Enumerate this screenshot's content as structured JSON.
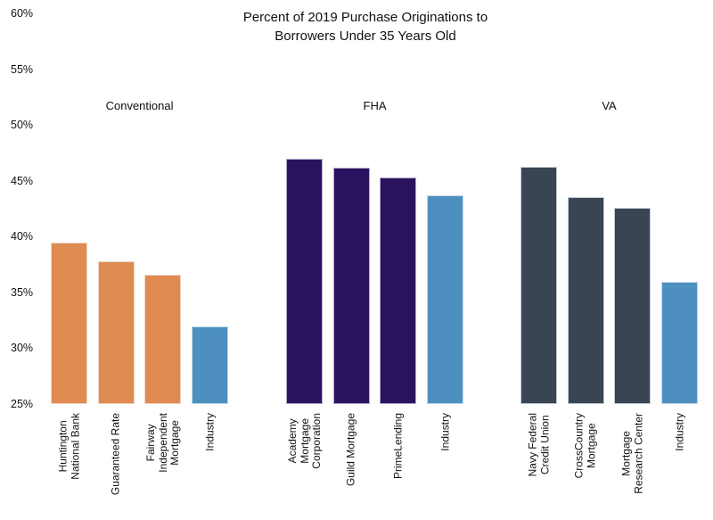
{
  "chart_data": {
    "type": "bar",
    "title": "Percent of 2019 Purchase Originations to Borrowers Under 35 Years Old",
    "title_lines": [
      "Percent of 2019 Purchase Originations to",
      "Borrowers Under 35 Years Old"
    ],
    "xlabel": "",
    "ylabel": "",
    "grid": false,
    "legend": "none",
    "y_axis": {
      "unit": "%",
      "min": 25,
      "max": 60,
      "tick_values": [
        60,
        55,
        50,
        45,
        40,
        35,
        30,
        25
      ],
      "tick_labels": [
        "60%",
        "55%",
        "50%",
        "45%",
        "40%",
        "35%",
        "30%",
        "25%"
      ]
    },
    "industry_color": "#4d90c0",
    "industry_edge_color": "#c3d7e7",
    "groups": [
      {
        "label": "Conventional",
        "bar_color": "#de8a51",
        "edge_color": "#eed7c2",
        "bars": [
          {
            "label": "Huntington National Bank",
            "label_lines": [
              "Huntington",
              "National Bank"
            ],
            "value": 39.5
          },
          {
            "label": "Guaranteed Rate",
            "label_lines": [
              "Guaranteed Rate"
            ],
            "value": 37.8
          },
          {
            "label": "Fairway Independent Mortgage",
            "label_lines": [
              "Fairway",
              "Independent",
              "Mortgage"
            ],
            "value": 36.6
          },
          {
            "label": "Industry",
            "label_lines": [
              "Industry"
            ],
            "value": 32.0,
            "industry": true
          }
        ]
      },
      {
        "label": "FHA",
        "bar_color": "#2a135e",
        "edge_color": "#b5aacd",
        "bars": [
          {
            "label": "Academy Mortgage Corporation",
            "label_lines": [
              "Academy",
              "Mortgage",
              "Corporation"
            ],
            "value": 47.0
          },
          {
            "label": "Guild Mortgage",
            "label_lines": [
              "Guild Mortgage"
            ],
            "value": 46.2
          },
          {
            "label": "PrimeLending",
            "label_lines": [
              "PrimeLending"
            ],
            "value": 45.3
          },
          {
            "label": "Industry",
            "label_lines": [
              "Industry"
            ],
            "value": 43.7,
            "industry": true
          }
        ]
      },
      {
        "label": "VA",
        "bar_color": "#3a4553",
        "edge_color": "#c2cbd3",
        "bars": [
          {
            "label": "Navy Federal Credit Union",
            "label_lines": [
              "Navy Federal",
              "Credit Union"
            ],
            "value": 46.3
          },
          {
            "label": "CrossCountry Mortgage",
            "label_lines": [
              "CrossCountry",
              "Mortgage"
            ],
            "value": 43.6
          },
          {
            "label": "Mortgage Research Center",
            "label_lines": [
              "Mortgage",
              "Research Center"
            ],
            "value": 42.6
          },
          {
            "label": "Industry",
            "label_lines": [
              "Industry"
            ],
            "value": 36.0,
            "industry": true
          }
        ]
      }
    ]
  }
}
